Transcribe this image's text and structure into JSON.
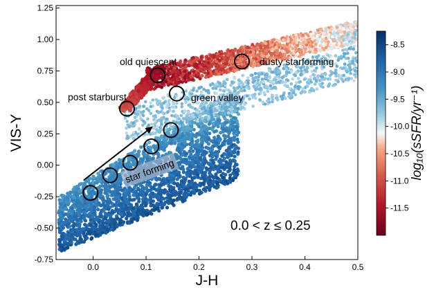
{
  "chart_data": {
    "type": "scatter",
    "title": "",
    "xlabel": "J-H",
    "ylabel": "VIS-Y",
    "xlim": [
      -0.07,
      0.5
    ],
    "ylim": [
      -0.75,
      1.27
    ],
    "x_ticks": [
      "0.0",
      "0.1",
      "0.2",
      "0.3",
      "0.4",
      "0.5"
    ],
    "x_tick_values": [
      0.0,
      0.1,
      0.2,
      0.3,
      0.4,
      0.5
    ],
    "y_ticks": [
      "-0.75",
      "-0.50",
      "-0.25",
      "0.00",
      "0.25",
      "0.50",
      "0.75",
      "1.00",
      "1.25"
    ],
    "y_tick_values": [
      -0.75,
      -0.5,
      -0.25,
      0.0,
      0.25,
      0.5,
      0.75,
      1.0,
      1.25
    ],
    "grid": false,
    "colorbar": {
      "label": "log₁₀(sSFR/yr⁻¹)",
      "range": [
        -12.0,
        -8.25
      ],
      "ticks": [
        "-8.5",
        "-9.0",
        "-9.5",
        "-10.0",
        "-10.5",
        "-11.0",
        "-11.5"
      ],
      "tick_values": [
        -8.5,
        -9.0,
        -9.5,
        -10.0,
        -10.5,
        -11.0,
        -11.5
      ],
      "cmap": "RdBu",
      "color_low": "#67001f",
      "color_high": "#053061"
    },
    "inset_label": "0.0 < z ≤ 0.25",
    "annotations": [
      {
        "text": "old quiescent"
      },
      {
        "text": "dusty starforming"
      },
      {
        "text": "post starburst"
      },
      {
        "text": "green valley"
      },
      {
        "text": "star forming"
      }
    ],
    "circles": [
      {
        "x": -0.005,
        "y": -0.22
      },
      {
        "x": 0.032,
        "y": -0.08
      },
      {
        "x": 0.07,
        "y": 0.02
      },
      {
        "x": 0.11,
        "y": 0.15
      },
      {
        "x": 0.147,
        "y": 0.28
      },
      {
        "x": 0.064,
        "y": 0.45
      },
      {
        "x": 0.122,
        "y": 0.715
      },
      {
        "x": 0.158,
        "y": 0.57
      },
      {
        "x": 0.281,
        "y": 0.825
      }
    ],
    "arrow": {
      "from": [
        -0.018,
        -0.12
      ],
      "to": [
        0.11,
        0.3
      ]
    },
    "quiescent_track": {
      "from": [
        0.06,
        0.45
      ],
      "to": [
        0.125,
        0.77
      ]
    }
  }
}
